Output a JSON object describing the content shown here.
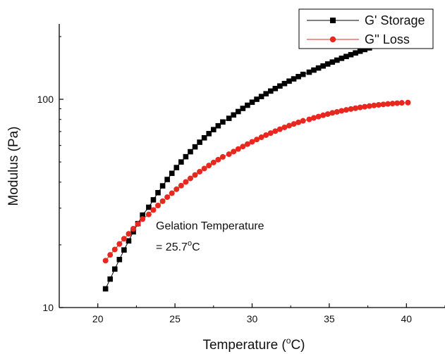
{
  "chart_data": {
    "type": "scatter",
    "title": "",
    "xlabel": "Temperature (oC)",
    "xlabel_main": "Temperature (",
    "xlabel_sup": "o",
    "xlabel_end": "C)",
    "ylabel": "Modulus (Pa)",
    "xlim": [
      17.5,
      42.5
    ],
    "ylim": [
      10,
      230
    ],
    "yscale": "log",
    "grid": false,
    "legend_position": "top-right",
    "x_ticks": [
      20,
      25,
      30,
      35,
      40
    ],
    "x_tick_labels": [
      "20",
      "25",
      "30",
      "35",
      "40"
    ],
    "y_ticks": [
      10,
      100
    ],
    "y_tick_labels": [
      "10",
      "100"
    ],
    "annotation": {
      "line1": "Gelation Temperature",
      "line2_main": "= 25.7",
      "line2_sup": "o",
      "line2_end": "C"
    },
    "series": [
      {
        "name": "G' Storage",
        "color": "#000000",
        "marker": "square",
        "x": [
          20.5,
          20.8,
          21.1,
          21.4,
          21.7,
          22.0,
          22.3,
          22.6,
          22.9,
          23.3,
          23.6,
          23.9,
          24.2,
          24.5,
          24.8,
          25.1,
          25.4,
          25.7,
          26.0,
          26.3,
          26.6,
          26.9,
          27.2,
          27.5,
          27.8,
          28.1,
          28.5,
          28.8,
          29.1,
          29.4,
          29.7,
          30.0,
          30.3,
          30.6,
          30.9,
          31.2,
          31.5,
          31.8,
          32.1,
          32.4,
          32.7,
          33.0,
          33.3,
          33.7,
          34.0,
          34.3,
          34.6,
          34.9,
          35.2,
          35.5,
          35.8,
          36.1,
          36.4,
          36.7,
          37.0,
          37.3,
          37.6,
          37.9
        ],
        "y": [
          12.3,
          13.7,
          15.3,
          17.0,
          18.9,
          20.9,
          23.1,
          25.3,
          27.8,
          30.3,
          32.9,
          35.6,
          38.4,
          41.2,
          44.1,
          47.0,
          50.0,
          53.0,
          56.0,
          59.1,
          62.2,
          65.3,
          68.4,
          71.5,
          74.6,
          77.8,
          81.0,
          84.1,
          87.3,
          90.4,
          93.6,
          96.8,
          100.0,
          103.1,
          106.3,
          109.5,
          112.6,
          115.8,
          119.0,
          122.2,
          125.3,
          128.5,
          131.7,
          134.9,
          138.1,
          141.3,
          144.5,
          147.7,
          150.9,
          154.1,
          157.3,
          160.5,
          163.7,
          166.9,
          170.1,
          173.3,
          176.5,
          179.7
        ]
      },
      {
        "name": "G'' Loss",
        "color": "#e8281e",
        "marker": "circle",
        "x": [
          20.5,
          20.8,
          21.1,
          21.4,
          21.7,
          22.0,
          22.3,
          22.6,
          22.9,
          23.3,
          23.6,
          23.9,
          24.2,
          24.5,
          24.8,
          25.1,
          25.4,
          25.7,
          26.0,
          26.3,
          26.6,
          26.9,
          27.2,
          27.5,
          27.8,
          28.1,
          28.5,
          28.8,
          29.1,
          29.4,
          29.7,
          30.0,
          30.3,
          30.6,
          30.9,
          31.2,
          31.5,
          31.8,
          32.1,
          32.4,
          32.7,
          33.0,
          33.3,
          33.7,
          34.0,
          34.3,
          34.6,
          34.9,
          35.2,
          35.5,
          35.8,
          36.1,
          36.4,
          36.7,
          37.0,
          37.3,
          37.6,
          37.9,
          38.2,
          38.5,
          38.8,
          39.1,
          39.4,
          39.7,
          40.1
        ],
        "y": [
          16.8,
          17.9,
          19.0,
          20.2,
          21.4,
          22.6,
          23.9,
          25.2,
          26.6,
          28.0,
          29.4,
          30.9,
          32.4,
          33.9,
          35.4,
          37.0,
          38.5,
          40.1,
          41.7,
          43.3,
          44.9,
          46.5,
          48.1,
          49.7,
          51.3,
          52.9,
          54.5,
          56.1,
          57.7,
          59.3,
          60.9,
          62.5,
          64.1,
          65.7,
          67.3,
          68.8,
          70.3,
          71.8,
          73.3,
          74.7,
          76.1,
          77.5,
          78.8,
          80.1,
          81.4,
          82.6,
          83.8,
          84.9,
          86.0,
          87.0,
          88.0,
          88.9,
          89.8,
          90.6,
          91.4,
          92.1,
          92.8,
          93.4,
          94.0,
          94.5,
          95.0,
          95.4,
          95.8,
          96.1,
          96.4
        ]
      }
    ]
  }
}
